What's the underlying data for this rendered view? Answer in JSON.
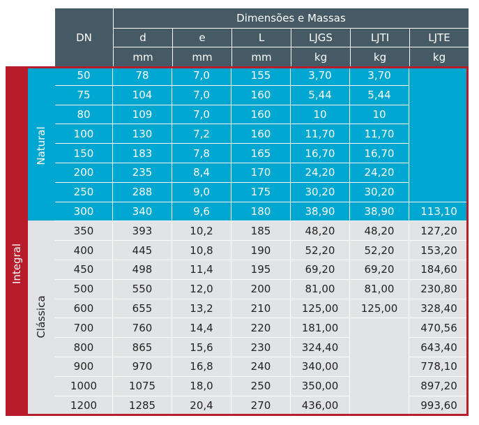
{
  "header": {
    "group_title": "Dimensões e Massas",
    "dn_label": "DN",
    "columns": [
      "d",
      "e",
      "L",
      "LJGS",
      "LJTI",
      "LJTE"
    ],
    "units": [
      "mm",
      "mm",
      "mm",
      "kg",
      "kg",
      "kg"
    ]
  },
  "groups": {
    "outer": "Integral",
    "natural": "Natural",
    "classica": "Clássica"
  },
  "rows": [
    [
      "50",
      "78",
      "7,0",
      "155",
      "3,70",
      "3,70",
      ""
    ],
    [
      "75",
      "104",
      "7,0",
      "160",
      "5,44",
      "5,44",
      ""
    ],
    [
      "80",
      "109",
      "7,0",
      "160",
      "10",
      "10",
      ""
    ],
    [
      "100",
      "130",
      "7,2",
      "160",
      "11,70",
      "11,70",
      ""
    ],
    [
      "150",
      "183",
      "7,8",
      "165",
      "16,70",
      "16,70",
      ""
    ],
    [
      "200",
      "235",
      "8,4",
      "170",
      "24,20",
      "24,20",
      ""
    ],
    [
      "250",
      "288",
      "9,0",
      "175",
      "30,20",
      "30,20",
      ""
    ],
    [
      "300",
      "340",
      "9,6",
      "180",
      "38,90",
      "38,90",
      "113,10"
    ],
    [
      "350",
      "393",
      "10,2",
      "185",
      "48,20",
      "48,20",
      "127,20"
    ],
    [
      "400",
      "445",
      "10,8",
      "190",
      "52,20",
      "52,20",
      "153,20"
    ],
    [
      "450",
      "498",
      "11,4",
      "195",
      "69,20",
      "69,20",
      "184,60"
    ],
    [
      "500",
      "550",
      "12,0",
      "200",
      "81,00",
      "81,00",
      "230,80"
    ],
    [
      "600",
      "655",
      "13,2",
      "210",
      "125,00",
      "125,00",
      "328,40"
    ],
    [
      "700",
      "760",
      "14,4",
      "220",
      "181,00",
      "",
      "470,56"
    ],
    [
      "800",
      "865",
      "15,6",
      "230",
      "324,40",
      "",
      "643,40"
    ],
    [
      "900",
      "970",
      "16,8",
      "240",
      "340,00",
      "",
      "778,10"
    ],
    [
      "1000",
      "1075",
      "18,0",
      "250",
      "350,00",
      "",
      "897,20"
    ],
    [
      "1200",
      "1285",
      "20,4",
      "270",
      "436,00",
      "",
      "993,60"
    ]
  ],
  "colors": {
    "header_bg": "#455a64",
    "natural_bg": "#00a7d0",
    "classica_bg": "#e2e3e5",
    "frame_red": "#b71c2b"
  }
}
